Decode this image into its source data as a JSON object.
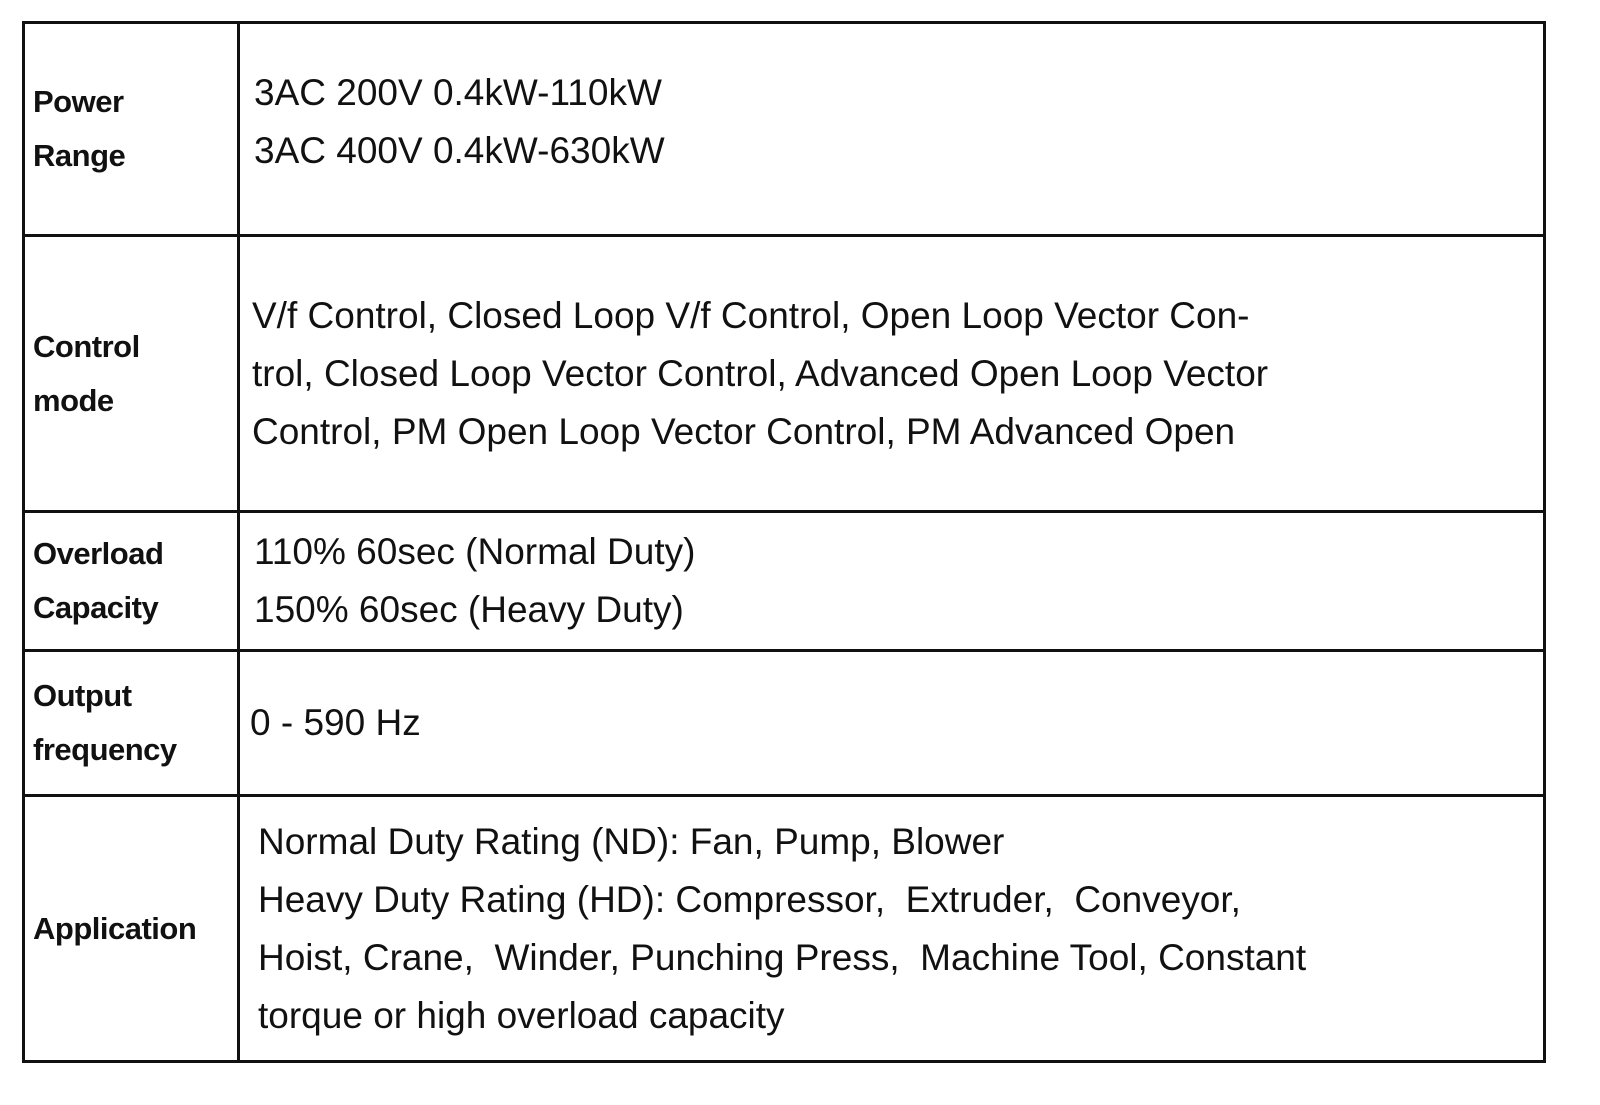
{
  "table": {
    "rows": [
      {
        "label": [
          "Power",
          "Range"
        ],
        "lines": [
          "3AC 200V 0.4kW-110kW",
          "3AC 400V 0.4kW-630kW"
        ]
      },
      {
        "label": [
          "Control",
          "mode"
        ],
        "lines": [
          "V/f Control, Closed Loop V/f Control, Open Loop Vector Con-",
          "trol, Closed Loop Vector Control, Advanced Open Loop Vector",
          "Control, PM Open Loop Vector Control, PM Advanced Open"
        ]
      },
      {
        "label": [
          "Overload",
          "Capacity"
        ],
        "lines": [
          "110% 60sec (Normal Duty)",
          "150% 60sec (Heavy Duty)"
        ]
      },
      {
        "label": [
          "Output",
          "frequency"
        ],
        "lines": [
          "0 - 590 Hz"
        ]
      },
      {
        "label": [
          "Application"
        ],
        "lines": [
          "Normal Duty Rating (ND): Fan, Pump, Blower",
          "Heavy Duty Rating (HD): Compressor,  Extruder,  Conveyor,",
          "Hoist, Crane,  Winder, Punching Press,  Machine Tool, Constant",
          "torque or high overload capacity"
        ]
      }
    ]
  }
}
